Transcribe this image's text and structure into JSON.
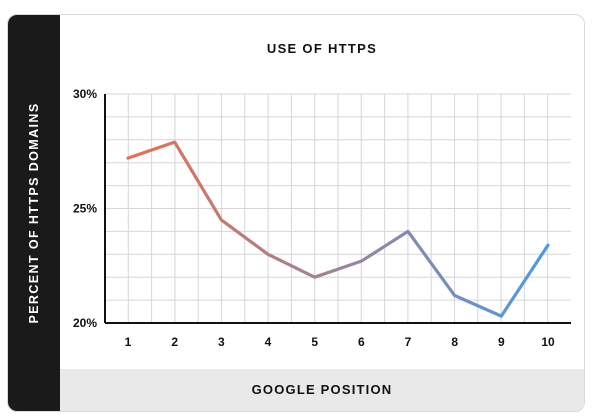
{
  "chart_data": {
    "type": "line",
    "title": "USE OF HTTPS",
    "xlabel": "GOOGLE POSITION",
    "ylabel": "PERCENT OF HTTPS DOMAINS",
    "x": [
      1,
      2,
      3,
      4,
      5,
      6,
      7,
      8,
      9,
      10
    ],
    "series": [
      {
        "values": [
          27.2,
          27.9,
          24.5,
          23.0,
          22.0,
          22.7,
          24.0,
          21.2,
          20.3,
          23.4
        ]
      }
    ],
    "ylim": [
      20,
      30
    ],
    "yticks": [
      {
        "value": 20,
        "label": "20%"
      },
      {
        "value": 25,
        "label": "25%"
      },
      {
        "value": 30,
        "label": "30%"
      }
    ],
    "xticks": [
      "1",
      "2",
      "3",
      "4",
      "5",
      "6",
      "7",
      "8",
      "9",
      "10"
    ],
    "grid": true,
    "line_gradient": [
      "#e8704f",
      "#4d9ae3"
    ]
  }
}
